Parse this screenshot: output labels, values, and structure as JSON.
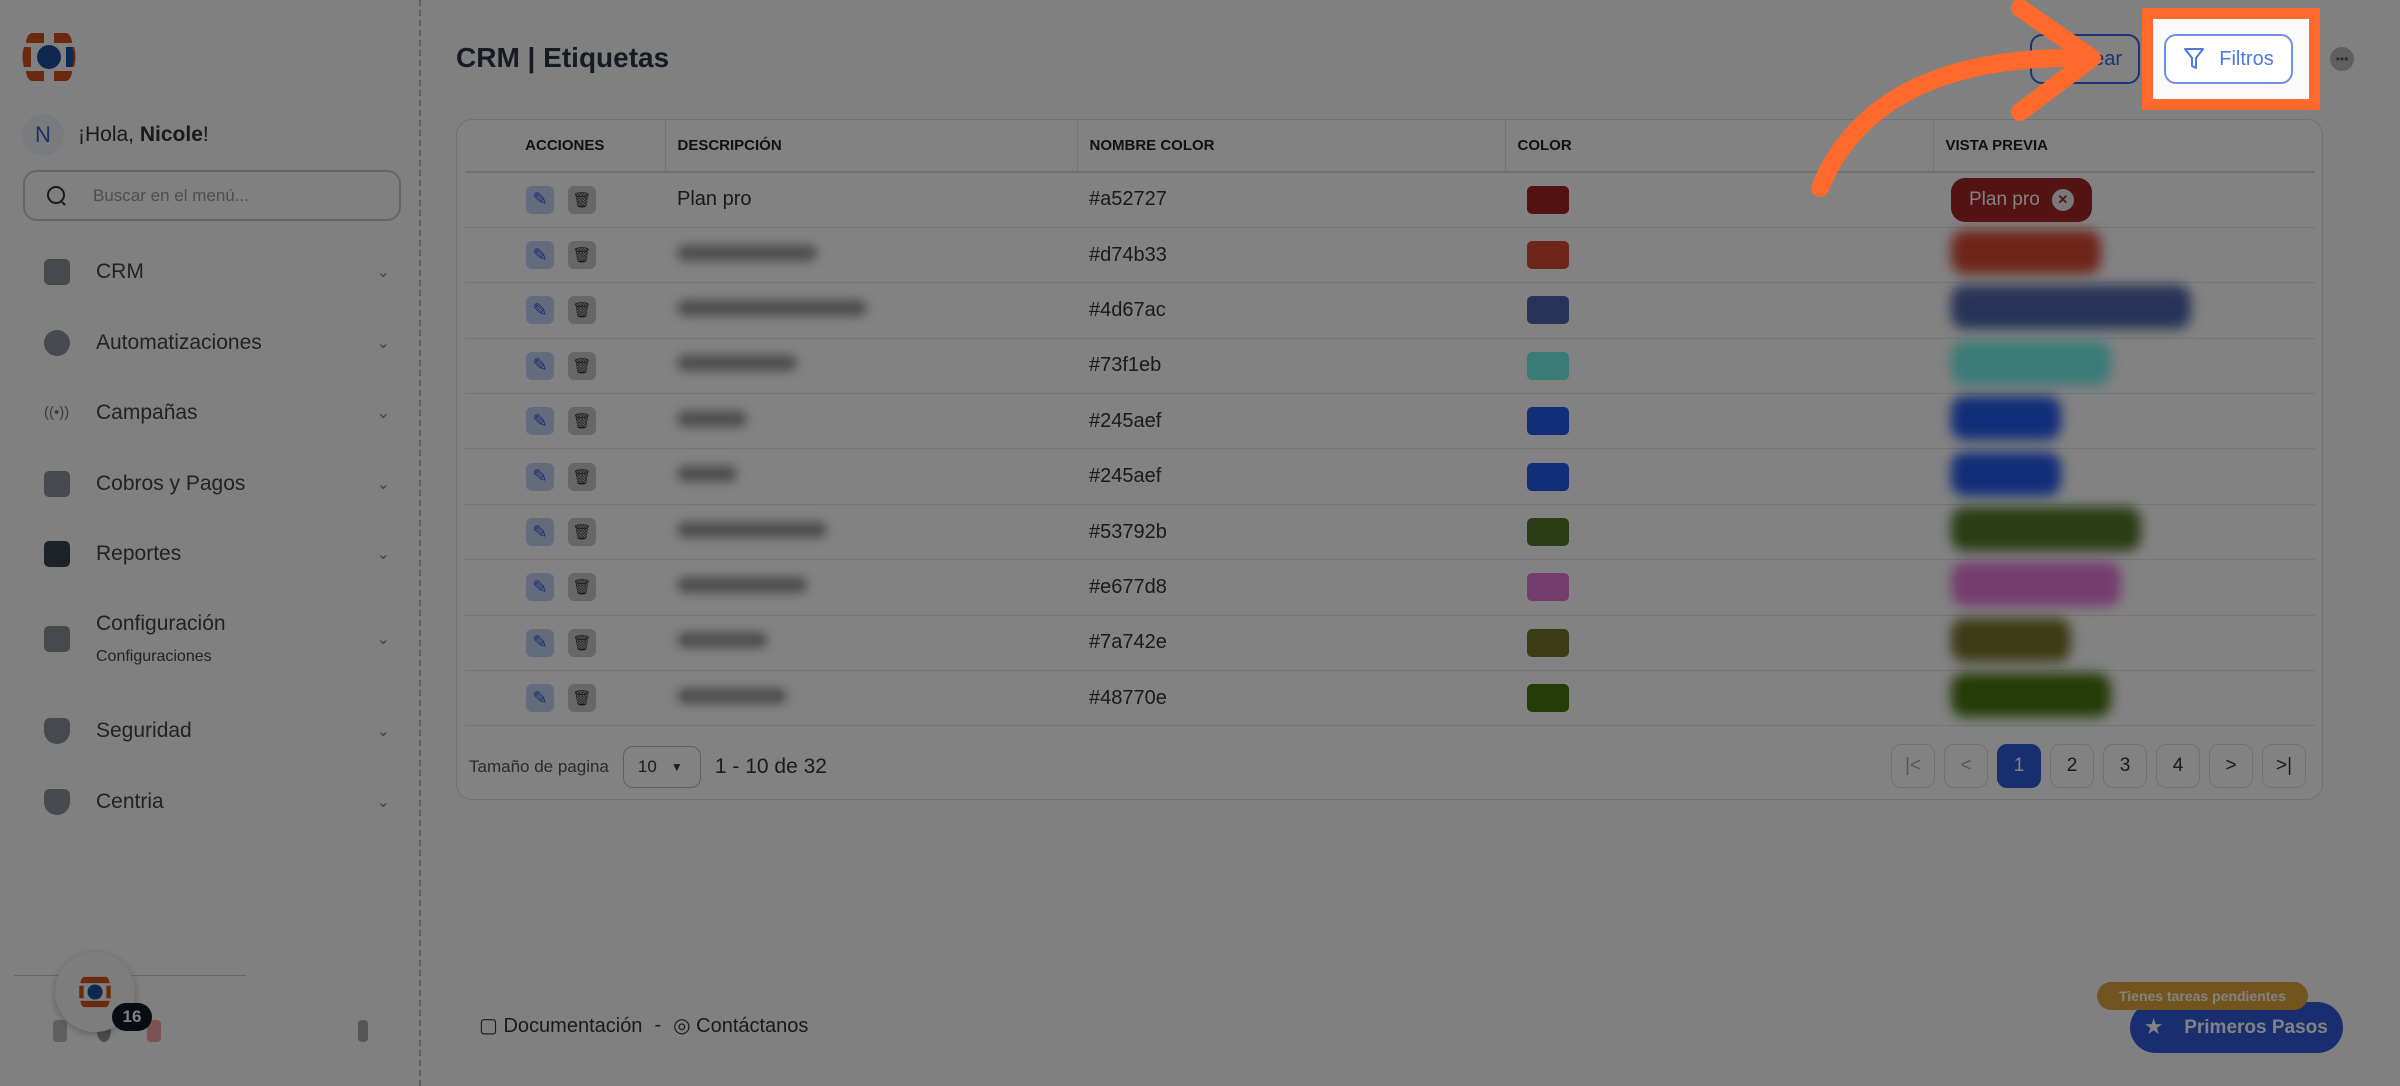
{
  "greeting": {
    "prefix": "¡Hola, ",
    "name": "Nicole",
    "suffix": "!",
    "initial": "N"
  },
  "search": {
    "placeholder": "Buscar en el menú..."
  },
  "sidebar": {
    "items": [
      {
        "label": "CRM",
        "icon": "file-icon"
      },
      {
        "label": "Automatizaciones",
        "icon": "hexagon-icon"
      },
      {
        "label": "Campañas",
        "icon": "broadcast-icon"
      },
      {
        "label": "Cobros y Pagos",
        "icon": "id-card-icon"
      },
      {
        "label": "Reportes",
        "icon": "card-icon"
      },
      {
        "label": "Configuración",
        "sub": "Configuraciones",
        "icon": "book-icon"
      },
      {
        "label": "Seguridad",
        "icon": "shield-icon"
      },
      {
        "label": "Centria",
        "icon": "shield-icon"
      }
    ],
    "notification_count": "16"
  },
  "header": {
    "title": "CRM | Etiquetas",
    "crear_label": "Crear",
    "filtros_label": "Filtros"
  },
  "table": {
    "columns": [
      "ACCIONES",
      "DESCRIPCIÓN",
      "NOMBRE COLOR",
      "COLOR",
      "VISTA PREVIA"
    ],
    "rows": [
      {
        "description": "Plan pro",
        "color": "#a52727"
      },
      {
        "description": "",
        "color": "#d74b33"
      },
      {
        "description": "",
        "color": "#4d67ac"
      },
      {
        "description": "",
        "color": "#73f1eb"
      },
      {
        "description": "",
        "color": "#245aef"
      },
      {
        "description": "",
        "color": "#245aef"
      },
      {
        "description": "",
        "color": "#53792b"
      },
      {
        "description": "",
        "color": "#e677d8"
      },
      {
        "description": "",
        "color": "#7a742e"
      },
      {
        "description": "",
        "color": "#48770e"
      }
    ]
  },
  "pagination": {
    "page_size_label": "Tamaño de pagina",
    "page_size": "10",
    "range": "1 - 10 de 32",
    "pages": [
      "1",
      "2",
      "3",
      "4"
    ],
    "current": "1"
  },
  "footer": {
    "docs": "Documentación",
    "sep": "-",
    "contact": "Contáctanos"
  },
  "onboarding": {
    "pending": "Tienes tareas pendientes",
    "button": "Primeros Pasos"
  },
  "colors": {
    "accent": "#2f5ad8",
    "highlight": "#ff6a2c",
    "brand_orange": "#d2541c",
    "brand_blue": "#1f4f9e"
  }
}
